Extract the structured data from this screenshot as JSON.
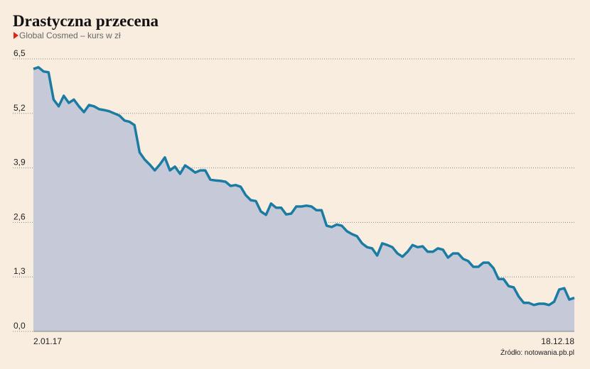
{
  "chart_data": {
    "type": "area",
    "title": "Drastyczna przecena",
    "subtitle": "Global Cosmed – kurs w zł",
    "source": "Źródło: notowania.pb.pl",
    "color": "#1b7ca3",
    "fill_color": "#c5c9d8",
    "grid": true,
    "ylim": [
      0,
      6.5
    ],
    "yticks": [
      {
        "value": 0,
        "label": "0,0"
      },
      {
        "value": 1.3,
        "label": "1,3"
      },
      {
        "value": 2.6,
        "label": "2,6"
      },
      {
        "value": 3.9,
        "label": "3,9"
      },
      {
        "value": 5.2,
        "label": "5,2"
      },
      {
        "value": 6.5,
        "label": "6,5"
      }
    ],
    "categories": [
      "2.01.17",
      null,
      null,
      null,
      null,
      null,
      null,
      null,
      null,
      null,
      null,
      null,
      null,
      null,
      null,
      null,
      null,
      null,
      null,
      null,
      null,
      null,
      null,
      null,
      null,
      null,
      null,
      null,
      null,
      null,
      null,
      null,
      null,
      null,
      null,
      null,
      null,
      null,
      null,
      null,
      null,
      null,
      null,
      null,
      null,
      null,
      null,
      null,
      null,
      null,
      null,
      null,
      null,
      null,
      null,
      null,
      null,
      null,
      null,
      null,
      null,
      null,
      null,
      null,
      null,
      null,
      null,
      null,
      null,
      null,
      null,
      null,
      null,
      null,
      null,
      null,
      null,
      null,
      null,
      null,
      null,
      null,
      null,
      null,
      null,
      null,
      null,
      null,
      null,
      null,
      null,
      null,
      null,
      null,
      null,
      null,
      null,
      null,
      null,
      null,
      null,
      null,
      null,
      null,
      null,
      null,
      null,
      "18.12.18"
    ],
    "values": [
      6.26,
      6.3,
      6.2,
      6.18,
      5.53,
      5.37,
      5.62,
      5.45,
      5.53,
      5.37,
      5.23,
      5.4,
      5.37,
      5.3,
      5.28,
      5.25,
      5.2,
      5.15,
      5.03,
      5.0,
      4.92,
      4.27,
      4.1,
      3.98,
      3.84,
      3.98,
      4.15,
      3.84,
      3.93,
      3.76,
      3.96,
      3.88,
      3.79,
      3.84,
      3.84,
      3.62,
      3.6,
      3.59,
      3.57,
      3.47,
      3.49,
      3.45,
      3.25,
      3.13,
      3.11,
      2.86,
      2.78,
      3.05,
      2.95,
      2.95,
      2.79,
      2.81,
      2.98,
      2.98,
      3.0,
      2.98,
      2.89,
      2.89,
      2.52,
      2.49,
      2.55,
      2.52,
      2.39,
      2.32,
      2.27,
      2.1,
      2.01,
      1.98,
      1.81,
      2.1,
      2.06,
      2.01,
      1.86,
      1.78,
      1.9,
      2.06,
      2.01,
      2.03,
      1.9,
      1.9,
      1.98,
      1.95,
      1.76,
      1.86,
      1.86,
      1.73,
      1.68,
      1.54,
      1.54,
      1.64,
      1.64,
      1.51,
      1.25,
      1.25,
      1.08,
      1.05,
      0.83,
      0.68,
      0.68,
      0.63,
      0.66,
      0.66,
      0.63,
      0.71,
      1.0,
      1.03,
      0.76,
      0.8
    ]
  }
}
